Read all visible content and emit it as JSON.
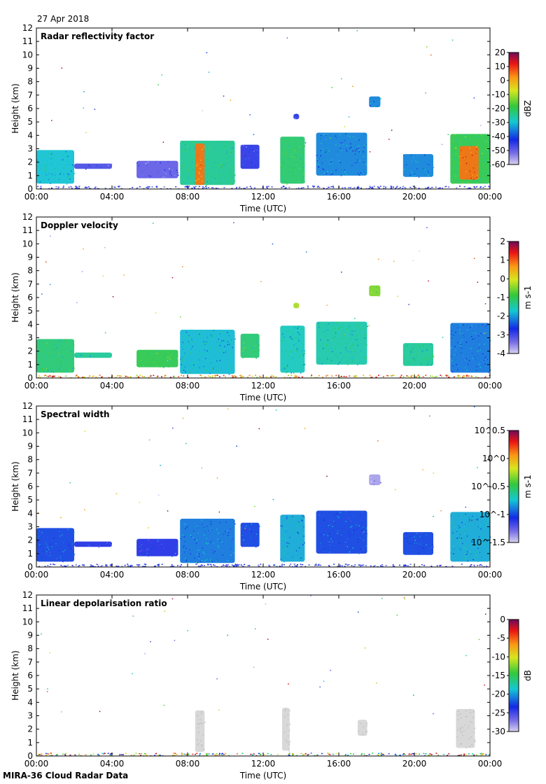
{
  "header": {
    "date": "27 Apr 2018"
  },
  "footer": {
    "caption": "MIRA-36 Cloud Radar Data"
  },
  "chart_data": [
    {
      "type": "heatmap",
      "title": "Radar reflectivity factor",
      "xlabel": "Time (UTC)",
      "ylabel": "Height (km)",
      "xticks": [
        "00:00",
        "04:00",
        "08:00",
        "12:00",
        "16:00",
        "20:00",
        "00:00"
      ],
      "xlim_hours": [
        0,
        24
      ],
      "ylim": [
        0,
        12
      ],
      "yticks": [
        0,
        1,
        2,
        3,
        4,
        5,
        6,
        7,
        8,
        9,
        10,
        11,
        12
      ],
      "colorbar": {
        "label": "dBZ",
        "ticks": [
          "20",
          "10",
          "0",
          "-10",
          "-20",
          "-30",
          "-40",
          "-50",
          "-60"
        ],
        "range": [
          -60,
          20
        ]
      },
      "cloud_regions": [
        {
          "t0": 0.0,
          "t1": 2.0,
          "base_km": 0.4,
          "top_km": 2.9,
          "value": -30
        },
        {
          "t0": 2.0,
          "t1": 4.0,
          "base_km": 1.5,
          "top_km": 1.9,
          "value": -48
        },
        {
          "t0": 5.3,
          "t1": 7.5,
          "base_km": 0.8,
          "top_km": 2.1,
          "value": -50
        },
        {
          "t0": 7.6,
          "t1": 10.5,
          "base_km": 0.3,
          "top_km": 3.6,
          "value": -25
        },
        {
          "t0": 8.4,
          "t1": 8.9,
          "base_km": 0.3,
          "top_km": 3.4,
          "value": 5
        },
        {
          "t0": 10.8,
          "t1": 11.8,
          "base_km": 1.5,
          "top_km": 3.3,
          "value": -45
        },
        {
          "t0": 12.9,
          "t1": 14.2,
          "base_km": 0.4,
          "top_km": 3.9,
          "value": -22
        },
        {
          "t0": 14.8,
          "t1": 17.5,
          "base_km": 1.0,
          "top_km": 4.2,
          "value": -35
        },
        {
          "t0": 17.6,
          "t1": 18.2,
          "base_km": 6.1,
          "top_km": 6.9,
          "value": -35
        },
        {
          "t0": 13.6,
          "t1": 13.9,
          "base_km": 5.2,
          "top_km": 5.6,
          "value": -45
        },
        {
          "t0": 19.4,
          "t1": 21.0,
          "base_km": 0.9,
          "top_km": 2.6,
          "value": -35
        },
        {
          "t0": 21.9,
          "t1": 24.0,
          "base_km": 0.4,
          "top_km": 4.1,
          "value": -20
        },
        {
          "t0": 22.4,
          "t1": 23.4,
          "base_km": 0.7,
          "top_km": 3.2,
          "value": 5
        }
      ]
    },
    {
      "type": "heatmap",
      "title": "Doppler velocity",
      "xlabel": "Time (UTC)",
      "ylabel": "Height (km)",
      "xticks": [
        "00:00",
        "04:00",
        "08:00",
        "12:00",
        "16:00",
        "20:00",
        "00:00"
      ],
      "xlim_hours": [
        0,
        24
      ],
      "ylim": [
        0,
        12
      ],
      "yticks": [
        0,
        1,
        2,
        3,
        4,
        5,
        6,
        7,
        8,
        9,
        10,
        11,
        12
      ],
      "colorbar": {
        "label": "m s-1",
        "ticks": [
          "2",
          "1",
          "0",
          "-1",
          "-2",
          "-3",
          "-4"
        ],
        "range": [
          -4,
          2
        ]
      },
      "cloud_regions": [
        {
          "t0": 0.0,
          "t1": 2.0,
          "base_km": 0.4,
          "top_km": 2.9,
          "value": -1.2
        },
        {
          "t0": 2.0,
          "t1": 4.0,
          "base_km": 1.5,
          "top_km": 1.9,
          "value": -1.4
        },
        {
          "t0": 5.3,
          "t1": 7.5,
          "base_km": 0.8,
          "top_km": 2.1,
          "value": -1.0
        },
        {
          "t0": 7.6,
          "t1": 10.5,
          "base_km": 0.3,
          "top_km": 3.6,
          "value": -1.8
        },
        {
          "t0": 10.8,
          "t1": 11.8,
          "base_km": 1.5,
          "top_km": 3.3,
          "value": -1.2
        },
        {
          "t0": 12.9,
          "t1": 14.2,
          "base_km": 0.4,
          "top_km": 3.9,
          "value": -1.6
        },
        {
          "t0": 14.8,
          "t1": 17.5,
          "base_km": 1.0,
          "top_km": 4.2,
          "value": -1.5
        },
        {
          "t0": 17.6,
          "t1": 18.2,
          "base_km": 6.1,
          "top_km": 6.9,
          "value": -0.5
        },
        {
          "t0": 13.6,
          "t1": 13.9,
          "base_km": 5.2,
          "top_km": 5.6,
          "value": -0.3
        },
        {
          "t0": 19.4,
          "t1": 21.0,
          "base_km": 0.9,
          "top_km": 2.6,
          "value": -1.4
        },
        {
          "t0": 21.9,
          "t1": 24.0,
          "base_km": 0.4,
          "top_km": 4.1,
          "value": -2.2
        }
      ]
    },
    {
      "type": "heatmap",
      "title": "Spectral width",
      "xlabel": "Time (UTC)",
      "ylabel": "Height (km)",
      "xticks": [
        "00:00",
        "04:00",
        "08:00",
        "12:00",
        "16:00",
        "20:00",
        "00:00"
      ],
      "xlim_hours": [
        0,
        24
      ],
      "ylim": [
        0,
        12
      ],
      "yticks": [
        0,
        1,
        2,
        3,
        4,
        5,
        6,
        7,
        8,
        9,
        10,
        11,
        12
      ],
      "colorbar": {
        "label": "m s-1",
        "ticks": [
          "10^0.5",
          "10^0",
          "10^-0.5",
          "10^-1",
          "10^-1.5"
        ],
        "range": [
          -1.5,
          0.5
        ]
      },
      "cloud_regions": [
        {
          "t0": 0.0,
          "t1": 2.0,
          "base_km": 0.4,
          "top_km": 2.9,
          "value": -1.0
        },
        {
          "t0": 2.0,
          "t1": 4.0,
          "base_km": 1.5,
          "top_km": 1.9,
          "value": -1.1
        },
        {
          "t0": 5.3,
          "t1": 7.5,
          "base_km": 0.8,
          "top_km": 2.1,
          "value": -1.1
        },
        {
          "t0": 7.6,
          "t1": 10.5,
          "base_km": 0.3,
          "top_km": 3.6,
          "value": -0.9
        },
        {
          "t0": 10.8,
          "t1": 11.8,
          "base_km": 1.5,
          "top_km": 3.3,
          "value": -1.0
        },
        {
          "t0": 12.9,
          "t1": 14.2,
          "base_km": 0.4,
          "top_km": 3.9,
          "value": -0.8
        },
        {
          "t0": 14.8,
          "t1": 17.5,
          "base_km": 1.0,
          "top_km": 4.2,
          "value": -1.0
        },
        {
          "t0": 17.6,
          "t1": 18.2,
          "base_km": 6.1,
          "top_km": 6.9,
          "value": -1.4
        },
        {
          "t0": 19.4,
          "t1": 21.0,
          "base_km": 0.9,
          "top_km": 2.6,
          "value": -1.0
        },
        {
          "t0": 21.9,
          "t1": 24.0,
          "base_km": 0.4,
          "top_km": 4.1,
          "value": -0.8
        }
      ]
    },
    {
      "type": "heatmap",
      "title": "Linear depolarisation ratio",
      "xlabel": "Time (UTC)",
      "ylabel": "Height (km)",
      "xticks": [
        "00:00",
        "04:00",
        "08:00",
        "12:00",
        "16:00",
        "20:00",
        "00:00"
      ],
      "xlim_hours": [
        0,
        24
      ],
      "ylim": [
        0,
        12
      ],
      "yticks": [
        0,
        1,
        2,
        3,
        4,
        5,
        6,
        7,
        8,
        9,
        10,
        11,
        12
      ],
      "colorbar": {
        "label": "dB",
        "ticks": [
          "0",
          "-5",
          "-10",
          "-15",
          "-20",
          "-25",
          "-30"
        ],
        "range": [
          -30,
          0
        ]
      },
      "cloud_regions": [
        {
          "t0": 8.4,
          "t1": 8.9,
          "base_km": 0.3,
          "top_km": 3.4,
          "value": "grey"
        },
        {
          "t0": 13.0,
          "t1": 13.4,
          "base_km": 0.4,
          "top_km": 3.6,
          "value": "grey"
        },
        {
          "t0": 17.0,
          "t1": 17.5,
          "base_km": 1.5,
          "top_km": 2.7,
          "value": "grey"
        },
        {
          "t0": 22.2,
          "t1": 23.2,
          "base_km": 0.6,
          "top_km": 3.5,
          "value": "grey"
        }
      ]
    }
  ]
}
